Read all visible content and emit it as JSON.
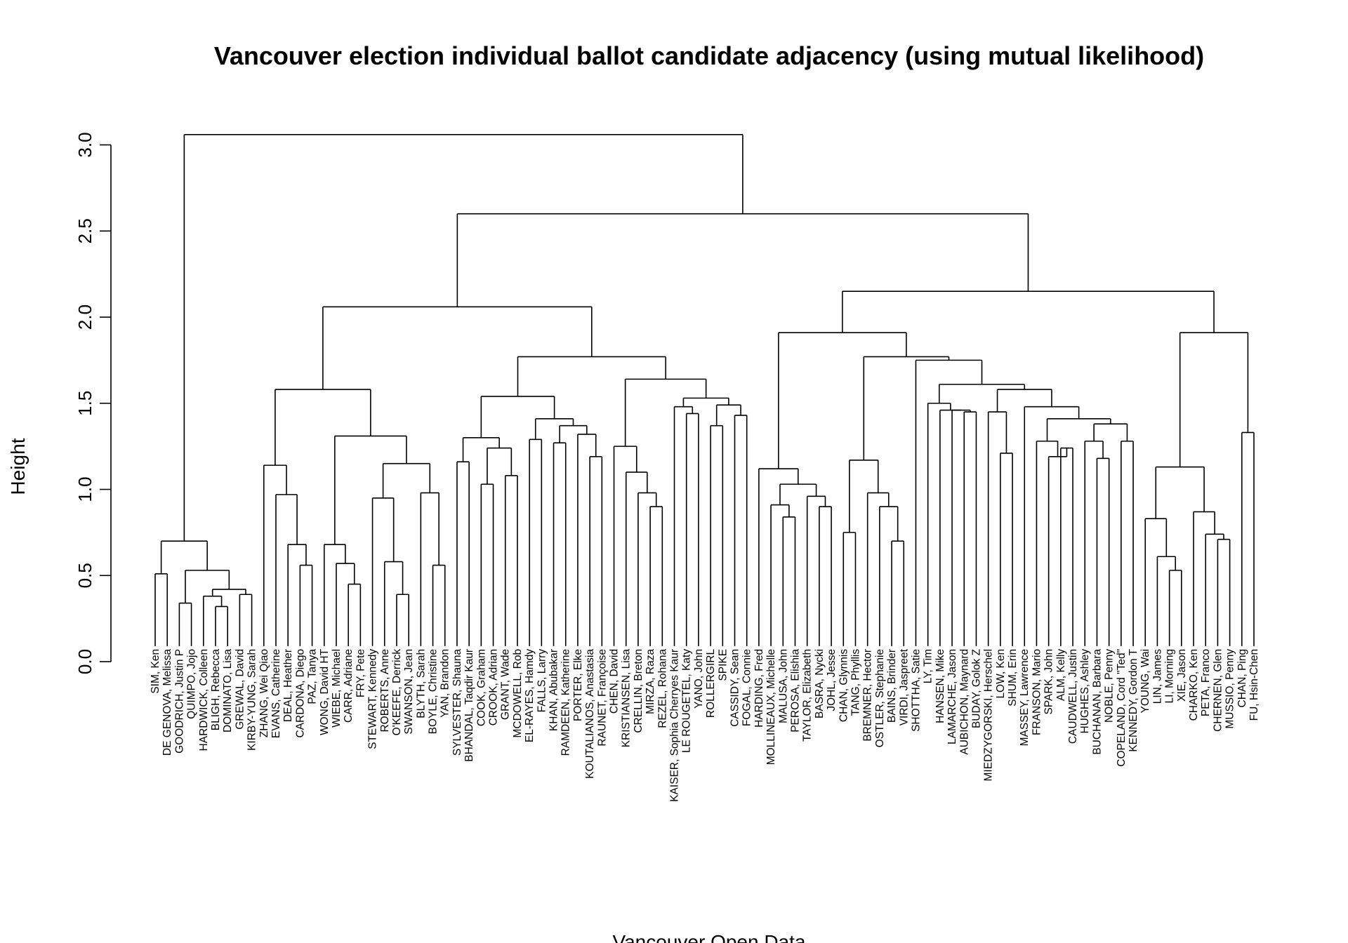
{
  "chart_data": {
    "type": "dendrogram",
    "title": "Vancouver election individual ballot candidate adjacency (using mutual likelihood)",
    "ylabel": "Height",
    "xlabel": "Vancouver Open Data",
    "ylim": [
      0,
      3.2
    ],
    "yticks": [
      "0.0",
      "0.5",
      "1.0",
      "1.5",
      "2.0",
      "2.5",
      "3.0"
    ],
    "leaves": [
      "SIM, Ken",
      "DE GENOVA, Melissa",
      "GOODRICH, Justin P",
      "QUIMPO, Jojo",
      "HARDWICK, Colleen",
      "BLIGH, Rebecca",
      "DOMINATO, Lisa",
      "GREWAL, David",
      "KIRBY-YUNG, Sarah",
      "ZHANG, Wei Qiao",
      "EVANS, Catherine",
      "DEAL, Heather",
      "CARDONA, Diego",
      "PAZ, Tanya",
      "WONG, David HT",
      "WIEBE, Michael",
      "CARR, Adriane",
      "FRY, Pete",
      "STEWART, Kennedy",
      "ROBERTS, Anne",
      "O'KEEFE, Derrick",
      "SWANSON, Jean",
      "BLYTH, Sarah",
      "BOYLE, Christine",
      "YAN, Brandon",
      "SYLVESTER, Shauna",
      "BHANDAL, Taqdir Kaur",
      "COOK, Graham",
      "CROOK, Adrian",
      "GRANT, Wade",
      "MCDOWELL, Rob",
      "EL-RAYES, Hamdy",
      "FALLS, Larry",
      "KHAN, Abubakar",
      "RAMDEEN, Katherine",
      "PORTER, Elke",
      "KOUTALIANOS, Anastasia",
      "RAUNET, Françoise",
      "CHEN, David",
      "KRISTIANSEN, Lisa",
      "CRELLIN, Breton",
      "MIRZA, Raza",
      "REZEL, Rohana",
      "KAISER, Sophia Cherryes Kaur",
      "LE ROUGETEL, Katy",
      "YANO, John",
      "ROLLERGIRL",
      "SPIKE",
      "CASSIDY, Sean",
      "FOGAL, Connie",
      "HARDING, Fred",
      "MOLLINEAUX, Michelle",
      "MALUSA, John",
      "PEROSA, Elishia",
      "TAYLOR, Elizabeth",
      "BASRA, Nycki",
      "JOHL, Jesse",
      "CHAN, Glynnis",
      "TANG, Phyllis",
      "BREMNER, Hector",
      "OSTLER, Stephanie",
      "BAINS, Brinder",
      "VIRDI, Jaspreet",
      "SHOTTHA, Satie",
      "LY, Tim",
      "HANSEN, Mike",
      "LAMARCHE, Jason",
      "AUBICHON, Maynard",
      "BUDAY, Golok Z",
      "MIEDZYGORSKI, Herschel",
      "LOW, Ken",
      "SHUM, Erin",
      "MASSEY, Lawrence",
      "FRANSON, Mario",
      "SPARK, John",
      "ALM, Kelly",
      "CAUDWELL, Justin",
      "HUGHES, Ashley",
      "BUCHANAN, Barbara",
      "NOBLE, Penny",
      "COPELAND, Cord \"Ted\"",
      "KENNEDY, Gordon T",
      "YOUNG, Wai",
      "LIN, James",
      "LI, Morning",
      "XIE, Jason",
      "CHARKO, Ken",
      "PETA, Franco",
      "CHERNEN, Glen",
      "MUSSIO, Penny",
      "CHAN, Ping",
      "FU, Hsin-Chen"
    ],
    "tree": [
      0.7,
      [
        0.51,
        "SIM, Ken",
        "DE GENOVA, Melissa"
      ],
      [
        0.53,
        [
          0.34,
          "GOODRICH, Justin P",
          "QUIMPO, Jojo"
        ],
        [
          0.42,
          [
            0.38,
            "HARDWICK, Colleen",
            [
              0.32,
              "BLIGH, Rebecca",
              "DOMINATO, Lisa"
            ]
          ],
          [
            0.39,
            "GREWAL, David",
            "KIRBY-YUNG, Sarah"
          ]
        ]
      ]
    ],
    "tree_note": "",
    "full_tree": [
      3.06,
      [
        0.7,
        [
          0.51,
          "SIM, Ken",
          "DE GENOVA, Melissa"
        ],
        [
          0.53,
          [
            0.34,
            "GOODRICH, Justin P",
            "QUIMPO, Jojo"
          ],
          [
            0.42,
            [
              0.38,
              "HARDWICK, Colleen",
              [
                0.32,
                "BLIGH, Rebecca",
                "DOMINATO, Lisa"
              ]
            ],
            [
              0.39,
              "GREWAL, David",
              "KIRBY-YUNG, Sarah"
            ]
          ]
        ]
      ],
      [
        2.6,
        [
          2.06,
          [
            1.58,
            [
              1.14,
              "ZHANG, Wei Qiao",
              [
                0.97,
                "EVANS, Catherine",
                [
                  0.68,
                  "DEAL, Heather",
                  [
                    0.56,
                    "CARDONA, Diego",
                    "PAZ, Tanya"
                  ]
                ]
              ]
            ],
            [
              1.31,
              [
                0.68,
                "WONG, David HT",
                [
                  0.57,
                  "WIEBE, Michael",
                  [
                    0.45,
                    "CARR, Adriane",
                    "FRY, Pete"
                  ]
                ]
              ],
              [
                1.15,
                [
                  0.95,
                  "STEWART, Kennedy",
                  [
                    0.58,
                    "ROBERTS, Anne",
                    [
                      0.39,
                      "O'KEEFE, Derrick",
                      "SWANSON, Jean"
                    ]
                  ]
                ],
                [
                  0.98,
                  "BLYTH, Sarah",
                  [
                    0.56,
                    "BOYLE, Christine",
                    "YAN, Brandon"
                  ]
                ]
              ]
            ]
          ],
          [
            1.77,
            [
              1.54,
              [
                1.3,
                [
                  1.16,
                  "SYLVESTER, Shauna",
                  "BHANDAL, Taqdir Kaur"
                ],
                [
                  1.24,
                  [
                    1.03,
                    "COOK, Graham",
                    "CROOK, Adrian"
                  ],
                  [
                    1.08,
                    "GRANT, Wade",
                    "MCDOWELL, Rob"
                  ]
                ]
              ],
              [
                1.41,
                [
                  1.29,
                  "EL-RAYES, Hamdy",
                  "FALLS, Larry"
                ],
                [
                  1.37,
                  [
                    1.27,
                    "KHAN, Abubakar",
                    "RAMDEEN, Katherine"
                  ],
                  [
                    1.32,
                    "PORTER, Elke",
                    [
                      1.19,
                      "KOUTALIANOS, Anastasia",
                      "RAUNET, Françoise"
                    ]
                  ]
                ]
              ]
            ],
            [
              1.64,
              [
                1.25,
                "CHEN, David",
                [
                  1.1,
                  "KRISTIANSEN, Lisa",
                  [
                    0.98,
                    "CRELLIN, Breton",
                    [
                      0.9,
                      "MIRZA, Raza",
                      "REZEL, Rohana"
                    ]
                  ]
                ]
              ],
              [
                1.53,
                [
                  1.48,
                  "KAISER, Sophia Cherryes Kaur",
                  [
                    1.44,
                    "LE ROUGETEL, Katy",
                    "YANO, John"
                  ]
                ],
                [
                  1.49,
                  [
                    1.37,
                    "ROLLERGIRL",
                    "SPIKE"
                  ],
                  [
                    1.43,
                    "CASSIDY, Sean",
                    "FOGAL, Connie"
                  ]
                ]
              ]
            ]
          ]
        ],
        [
          2.15,
          [
            1.91,
            [
              1.12,
              "HARDING, Fred",
              [
                1.03,
                [
                  0.91,
                  "MOLLINEAUX, Michelle",
                  [
                    0.84,
                    "MALUSA, John",
                    "PEROSA, Elishia"
                  ]
                ],
                [
                  0.96,
                  "TAYLOR, Elizabeth",
                  [
                    0.9,
                    "BASRA, Nycki",
                    "JOHL, Jesse"
                  ]
                ]
              ]
            ],
            [
              1.77,
              [
                1.17,
                [
                  0.75,
                  "CHAN, Glynnis",
                  "TANG, Phyllis"
                ],
                [
                  0.98,
                  "BREMNER, Hector",
                  [
                    0.9,
                    "OSTLER, Stephanie",
                    [
                      0.7,
                      "BAINS, Brinder",
                      "VIRDI, Jaspreet"
                    ]
                  ]
                ]
              ],
              [
                1.75,
                "SHOTTHA, Satie",
                [
                  1.61,
                  [
                    1.5,
                    "LY, Tim",
                    [
                      1.46,
                      "HANSEN, Mike",
                      [
                        1.46,
                        "LAMARCHE, Jason",
                        [
                          1.45,
                          "AUBICHON, Maynard",
                          "BUDAY, Golok Z"
                        ]
                      ]
                    ]
                  ],
                  [
                    1.58,
                    [
                      1.45,
                      "MIEDZYGORSKI, Herschel",
                      [
                        1.21,
                        "LOW, Ken",
                        "SHUM, Erin"
                      ]
                    ],
                    [
                      1.48,
                      "MASSEY, Lawrence",
                      [
                        1.41,
                        [
                          1.28,
                          "FRANSON, Mario",
                          [
                            1.19,
                            "SPARK, John",
                            [
                              1.24,
                              "ALM, Kelly",
                              "CAUDWELL, Justin"
                            ]
                          ]
                        ],
                        [
                          1.38,
                          [
                            1.28,
                            "HUGHES, Ashley",
                            [
                              1.18,
                              "BUCHANAN, Barbara",
                              "NOBLE, Penny"
                            ]
                          ],
                          [
                            1.28,
                            "COPELAND, Cord \"Ted\"",
                            "KENNEDY, Gordon T"
                          ]
                        ]
                      ]
                    ]
                  ]
                ]
              ]
            ]
          ],
          [
            1.91,
            [
              1.13,
              [
                0.83,
                "YOUNG, Wai",
                [
                  0.61,
                  "LIN, James",
                  [
                    0.53,
                    "LI, Morning",
                    "XIE, Jason"
                  ]
                ]
              ],
              [
                0.87,
                "CHARKO, Ken",
                [
                  0.74,
                  "PETA, Franco",
                  [
                    0.71,
                    "CHERNEN, Glen",
                    "MUSSIO, Penny"
                  ]
                ]
              ]
            ],
            [
              1.33,
              "CHAN, Ping",
              "FU, Hsin-Chen"
            ]
          ]
        ]
      ]
    ]
  }
}
